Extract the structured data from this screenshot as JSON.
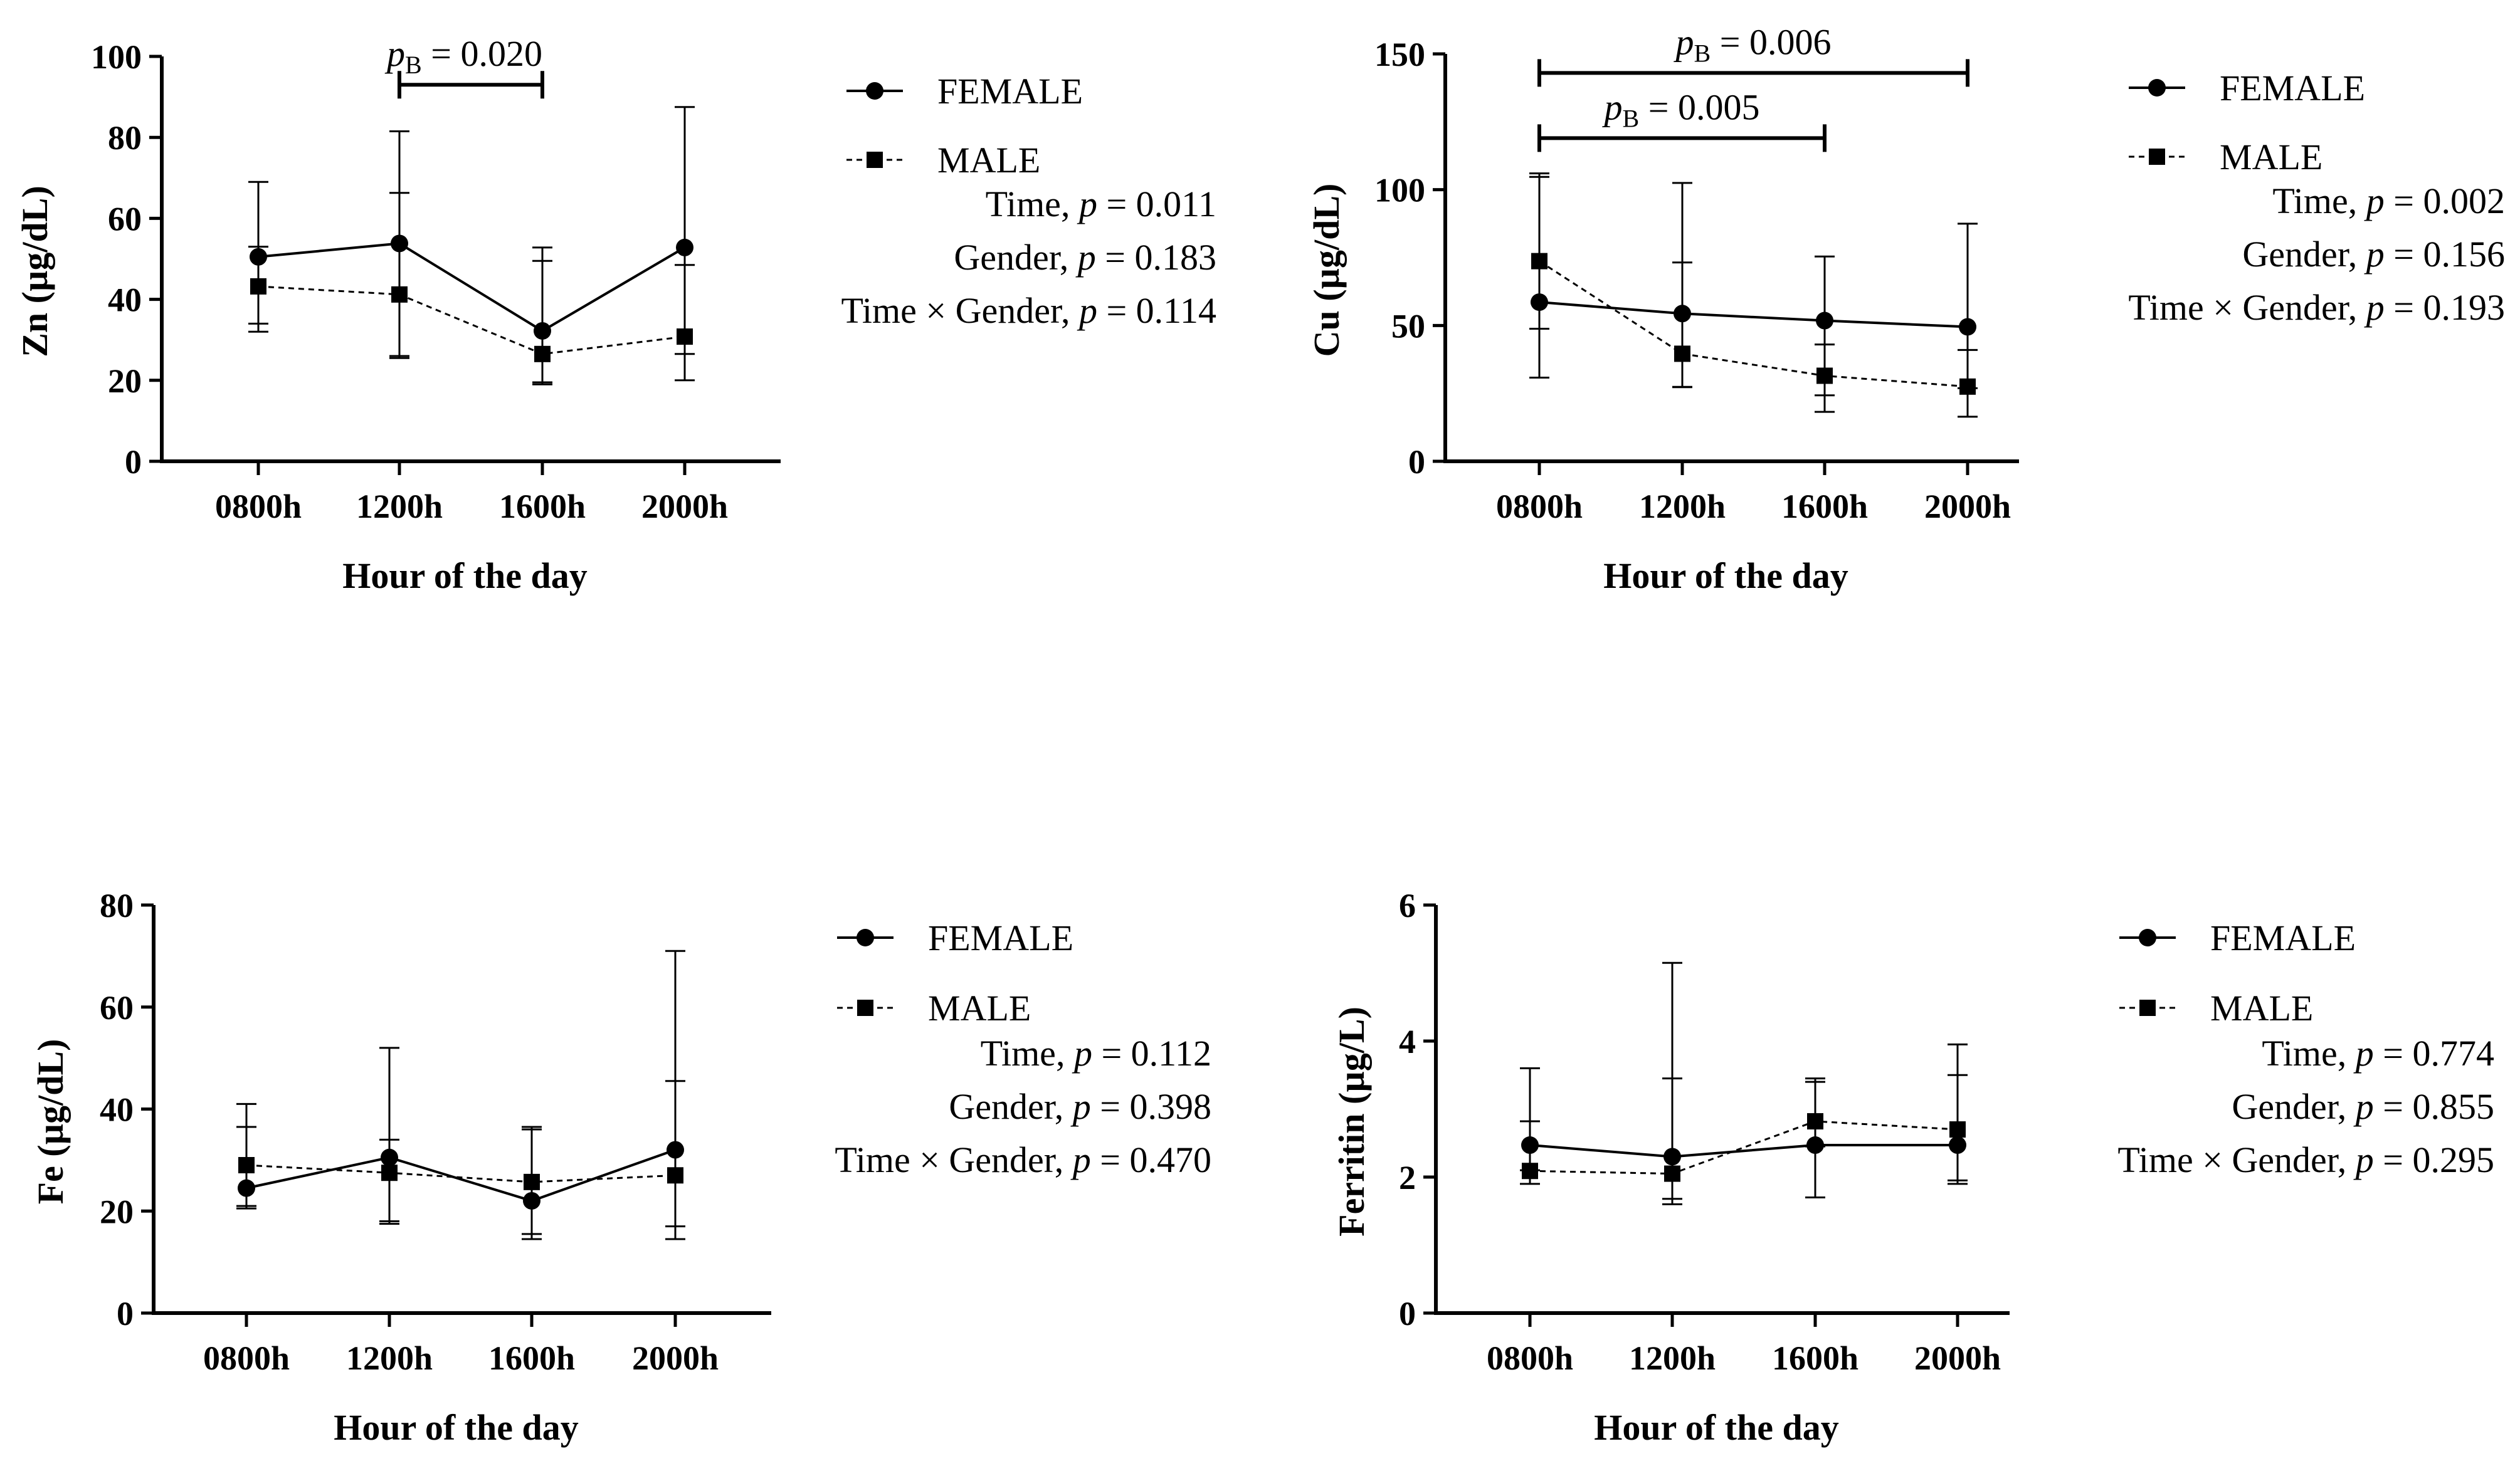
{
  "chart_data": [
    {
      "type": "line",
      "categories": [
        "0800h",
        "1200h",
        "1600h",
        "2000h"
      ],
      "xlabel": "Hour of the day",
      "ylabel": "Zn (µg/dL)",
      "ylim": [
        0,
        100
      ],
      "yticks": [
        0,
        20,
        40,
        60,
        80,
        100
      ],
      "series": [
        {
          "name": "FEMALE",
          "marker": "circle",
          "line": "solid",
          "values": [
            50.5,
            53.8,
            32.2,
            52.8
          ],
          "err_upper": [
            69,
            81.5,
            52.8,
            87.5
          ],
          "err_lower": [
            32,
            26,
            19.5,
            26.5
          ]
        },
        {
          "name": "MALE",
          "marker": "square",
          "line": "dashed",
          "values": [
            43.2,
            41.2,
            26.5,
            30.8
          ],
          "err_upper": [
            53,
            66.3,
            49.5,
            48.5
          ],
          "err_lower": [
            34,
            25.5,
            19,
            20
          ]
        }
      ],
      "stats": [
        {
          "label": "Time",
          "p_text": "= 0.011"
        },
        {
          "label": "Gender",
          "p_text": "= 0.183"
        },
        {
          "label": "Time × Gender",
          "p_text": "= 0.114"
        }
      ],
      "brackets": [
        {
          "from": "1200h",
          "to": "1600h",
          "y": 93,
          "p_text": "= 0.020"
        }
      ]
    },
    {
      "type": "line",
      "categories": [
        "0800h",
        "1200h",
        "1600h",
        "2000h"
      ],
      "xlabel": "Hour of the day",
      "ylabel": "Cu (µg/dL)",
      "ylim": [
        0,
        150
      ],
      "yticks": [
        0,
        50,
        100,
        150
      ],
      "series": [
        {
          "name": "FEMALE",
          "marker": "circle",
          "line": "solid",
          "values": [
            58.6,
            54.4,
            51.8,
            49.5
          ],
          "err_upper": [
            106,
            102.5,
            75.4,
            87.5
          ],
          "err_lower": [
            30.8,
            27.3,
            24.3,
            26.9
          ]
        },
        {
          "name": "MALE",
          "marker": "square",
          "line": "dashed",
          "values": [
            73.7,
            39.6,
            31.5,
            27.5
          ],
          "err_upper": [
            104.7,
            73.2,
            43,
            41
          ],
          "err_lower": [
            48.8,
            27.4,
            18.2,
            16.4
          ]
        }
      ],
      "stats": [
        {
          "label": "Time",
          "p_text": "= 0.002"
        },
        {
          "label": "Gender",
          "p_text": "= 0.156"
        },
        {
          "label": "Time × Gender",
          "p_text": "= 0.193"
        }
      ],
      "brackets": [
        {
          "from": "0800h",
          "to": "2000h",
          "y": 143,
          "p_text": "= 0.006"
        },
        {
          "from": "0800h",
          "to": "1600h",
          "y": 119,
          "p_text": "= 0.005"
        }
      ]
    },
    {
      "type": "line",
      "categories": [
        "0800h",
        "1200h",
        "1600h",
        "2000h"
      ],
      "xlabel": "Hour of the day",
      "ylabel": "Fe (µg/dL)",
      "ylim": [
        0,
        80
      ],
      "yticks": [
        0,
        20,
        40,
        60,
        80
      ],
      "series": [
        {
          "name": "FEMALE",
          "marker": "circle",
          "line": "solid",
          "values": [
            24.5,
            30.5,
            22,
            32
          ],
          "err_upper": [
            36.5,
            52,
            36,
            71
          ],
          "err_lower": [
            21,
            18,
            14.5,
            14.5
          ]
        },
        {
          "name": "MALE",
          "marker": "square",
          "line": "dashed",
          "values": [
            29,
            27.5,
            25.7,
            27
          ],
          "err_upper": [
            41,
            34,
            36.5,
            45.5
          ],
          "err_lower": [
            20.5,
            17.5,
            15.5,
            17
          ]
        }
      ],
      "stats": [
        {
          "label": "Time",
          "p_text": "= 0.112"
        },
        {
          "label": "Gender",
          "p_text": "= 0.398"
        },
        {
          "label": "Time × Gender",
          "p_text": "= 0.470"
        }
      ],
      "brackets": []
    },
    {
      "type": "line",
      "categories": [
        "0800h",
        "1200h",
        "1600h",
        "2000h"
      ],
      "xlabel": "Hour of the day",
      "ylabel": "Ferritin (µg/L)",
      "ylim": [
        0,
        6
      ],
      "yticks": [
        0,
        2,
        4,
        6
      ],
      "series": [
        {
          "name": "FEMALE",
          "marker": "circle",
          "line": "solid",
          "values": [
            2.47,
            2.3,
            2.47,
            2.47
          ],
          "err_upper": [
            3.6,
            5.15,
            3.4,
            3.5
          ],
          "err_lower": [
            2.1,
            1.6,
            1.7,
            1.9
          ]
        },
        {
          "name": "MALE",
          "marker": "square",
          "line": "dashed",
          "values": [
            2.09,
            2.05,
            2.82,
            2.7
          ],
          "err_upper": [
            2.82,
            3.45,
            3.45,
            3.95
          ],
          "err_lower": [
            1.9,
            1.68,
            2.45,
            1.95
          ]
        }
      ],
      "stats": [
        {
          "label": "Time",
          "p_text": "= 0.774"
        },
        {
          "label": "Gender",
          "p_text": "= 0.855"
        },
        {
          "label": "Time × Gender",
          "p_text": "= 0.295"
        }
      ],
      "brackets": []
    }
  ]
}
